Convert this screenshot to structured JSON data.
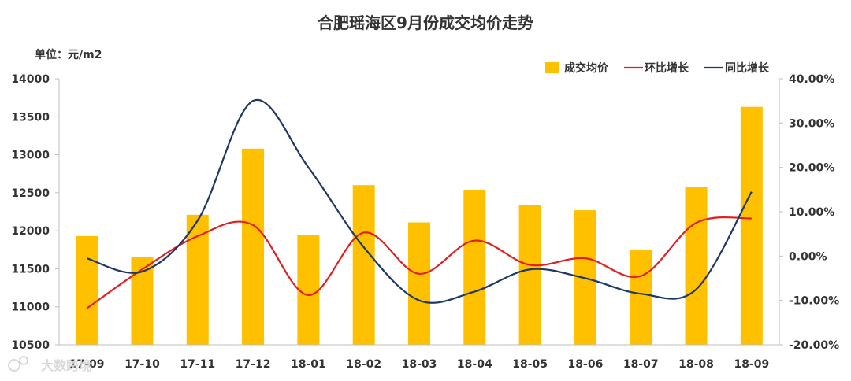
{
  "chart_data": {
    "type": "bar",
    "title": "合肥瑶海区9月份成交均价走势",
    "unit_label": "单位：元/m2",
    "categories": [
      "17-09",
      "17-10",
      "17-11",
      "17-12",
      "18-01",
      "18-02",
      "18-03",
      "18-04",
      "18-05",
      "18-06",
      "18-07",
      "18-08",
      "18-09"
    ],
    "ylim": [
      10500,
      14000
    ],
    "y_ticks": [
      10500,
      11000,
      11500,
      12000,
      12500,
      13000,
      13500,
      14000
    ],
    "y2lim": [
      -20,
      40
    ],
    "y2_ticks": [
      "-20.00%",
      "-10.00%",
      "0.00%",
      "10.00%",
      "20.00%",
      "30.00%",
      "40.00%"
    ],
    "grid": false,
    "legend_position": "top-right",
    "series": [
      {
        "name": "成交均价",
        "type": "bar",
        "axis": "left",
        "color": "#FFC000",
        "values": [
          11930,
          11650,
          12210,
          13080,
          11950,
          12600,
          12110,
          12540,
          12340,
          12270,
          11750,
          12580,
          13630
        ]
      },
      {
        "name": "环比增长",
        "type": "line",
        "axis": "right",
        "color": "#E02020",
        "values": [
          -11.8,
          -3.0,
          4.5,
          7.0,
          -8.8,
          5.3,
          -4.0,
          3.5,
          -2.0,
          -0.5,
          -4.5,
          7.5,
          8.5
        ]
      },
      {
        "name": "同比增长",
        "type": "line",
        "axis": "right",
        "color": "#1F3864",
        "values": [
          -0.5,
          -3.5,
          8.0,
          35.0,
          20.0,
          2.0,
          -10.0,
          -8.0,
          -3.0,
          -5.0,
          -8.5,
          -7.5,
          14.5
        ]
      }
    ]
  },
  "watermark": "大数跨境"
}
